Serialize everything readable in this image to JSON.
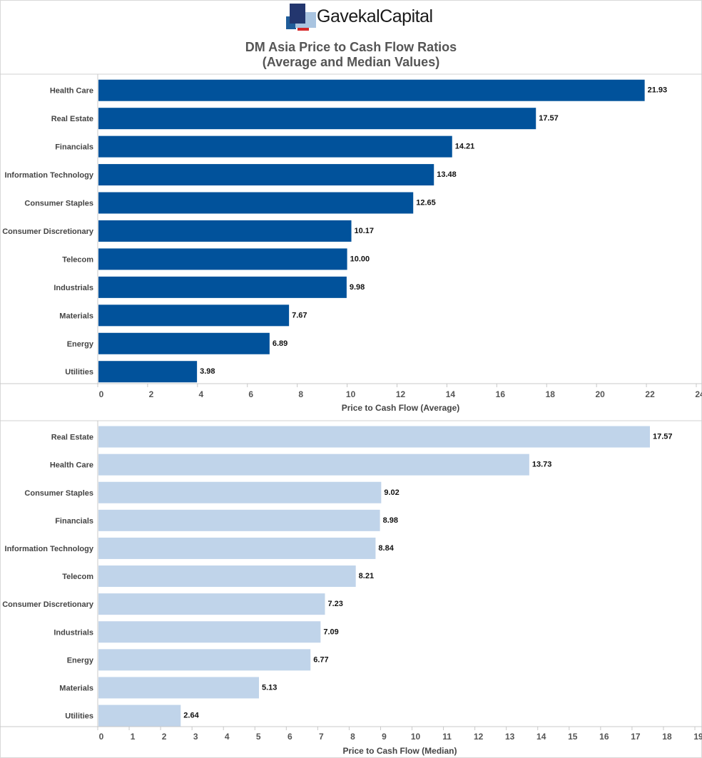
{
  "brand": {
    "logo_text": "GavekalCapital",
    "colors": {
      "square_dark": "#23366e",
      "square_mid": "#1f5c99",
      "square_light": "#a9c4e0",
      "square_red": "#d62728"
    }
  },
  "title": {
    "line1": "DM Asia Price to Cash Flow Ratios",
    "line2": "(Average and Median Values)"
  },
  "chart_data": [
    {
      "type": "bar",
      "orientation": "horizontal",
      "categories": [
        "Health Care",
        "Real Estate",
        "Financials",
        "Information Technology",
        "Consumer Staples",
        "Consumer Discretionary",
        "Telecom",
        "Industrials",
        "Materials",
        "Energy",
        "Utilities"
      ],
      "values": [
        21.93,
        17.57,
        14.21,
        13.48,
        12.65,
        10.17,
        10.0,
        9.98,
        7.67,
        6.89,
        3.98
      ],
      "value_labels": [
        "21.93",
        "17.57",
        "14.21",
        "13.48",
        "12.65",
        "10.17",
        "10.00",
        "9.98",
        "7.67",
        "6.89",
        "3.98"
      ],
      "xlabel": "Price to Cash Flow (Average)",
      "xlim": [
        0,
        24
      ],
      "xticks": [
        "0",
        "2",
        "4",
        "6",
        "8",
        "10",
        "12",
        "14",
        "16",
        "18",
        "20",
        "22",
        "24"
      ],
      "bar_color": "#01529b",
      "grid": false
    },
    {
      "type": "bar",
      "orientation": "horizontal",
      "categories": [
        "Real Estate",
        "Health Care",
        "Consumer Staples",
        "Financials",
        "Information Technology",
        "Telecom",
        "Consumer Discretionary",
        "Industrials",
        "Energy",
        "Materials",
        "Utilities"
      ],
      "values": [
        17.57,
        13.73,
        9.02,
        8.98,
        8.84,
        8.21,
        7.23,
        7.09,
        6.77,
        5.13,
        2.64
      ],
      "value_labels": [
        "17.57",
        "13.73",
        "9.02",
        "8.98",
        "8.84",
        "8.21",
        "7.23",
        "7.09",
        "6.77",
        "5.13",
        "2.64"
      ],
      "xlabel": "Price to Cash Flow (Median)",
      "xlim": [
        0,
        19
      ],
      "xticks": [
        "0",
        "1",
        "2",
        "3",
        "4",
        "5",
        "6",
        "7",
        "8",
        "9",
        "10",
        "11",
        "12",
        "13",
        "14",
        "15",
        "16",
        "17",
        "18",
        "19"
      ],
      "bar_color": "#c0d4ea",
      "grid": false
    }
  ]
}
